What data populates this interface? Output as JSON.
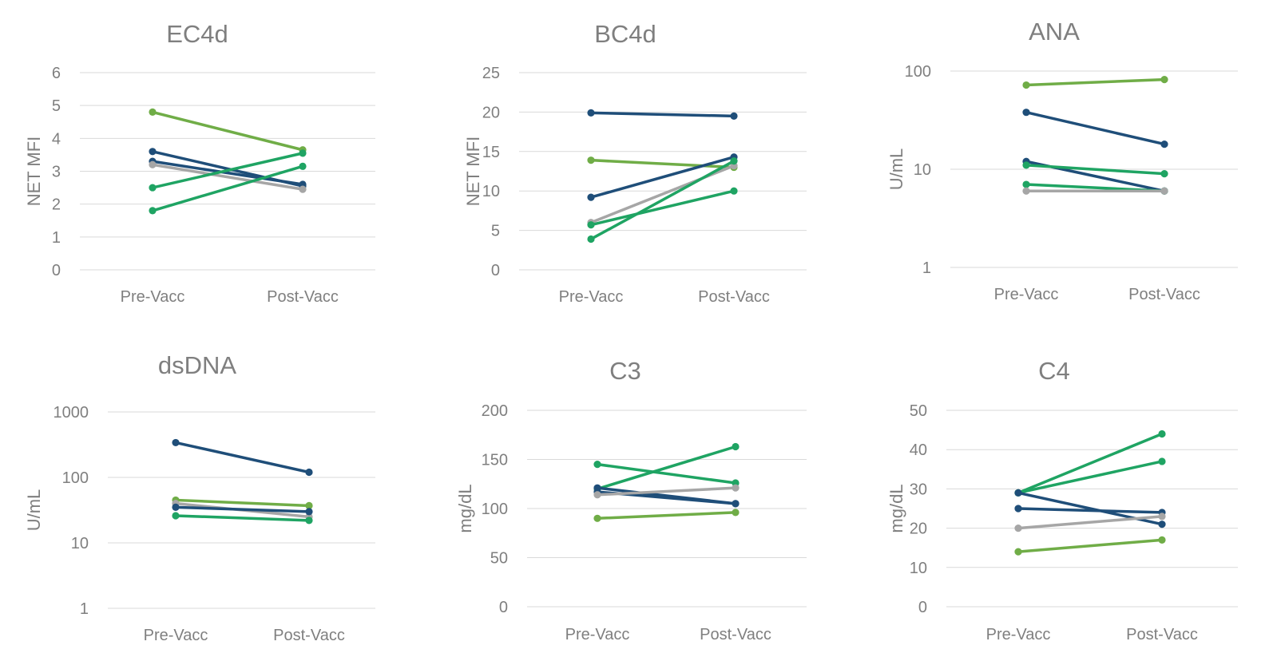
{
  "colors": {
    "navy": "#1f4e79",
    "green": "#1fa463",
    "lightgreen": "#70ad47",
    "gray": "#a6a6a6"
  },
  "chart_data": [
    {
      "type": "line",
      "title": "EC4d",
      "ylabel": "NET MFI",
      "scale": "linear",
      "ylim": [
        0,
        6
      ],
      "yticks": [
        "0",
        "1",
        "2",
        "3",
        "4",
        "5",
        "6"
      ],
      "yticks_values": [
        0,
        1,
        2,
        3,
        4,
        5,
        6
      ],
      "categories": [
        "Pre-Vacc",
        "Post-Vacc"
      ],
      "series": [
        {
          "name": "s1",
          "color": "lightgreen",
          "values": [
            4.8,
            3.65
          ]
        },
        {
          "name": "s2",
          "color": "navy",
          "values": [
            3.6,
            2.55
          ]
        },
        {
          "name": "s3",
          "color": "navy",
          "values": [
            3.3,
            2.6
          ]
        },
        {
          "name": "s4",
          "color": "gray",
          "values": [
            3.2,
            2.45
          ]
        },
        {
          "name": "s5",
          "color": "green",
          "values": [
            2.5,
            3.55
          ]
        },
        {
          "name": "s6",
          "color": "green",
          "values": [
            1.8,
            3.15
          ]
        }
      ]
    },
    {
      "type": "line",
      "title": "BC4d",
      "ylabel": "NET MFI",
      "scale": "linear",
      "ylim": [
        0,
        25
      ],
      "yticks": [
        "0",
        "5",
        "10",
        "15",
        "20",
        "25"
      ],
      "yticks_values": [
        0,
        5,
        10,
        15,
        20,
        25
      ],
      "categories": [
        "Pre-Vacc",
        "Post-Vacc"
      ],
      "series": [
        {
          "name": "s1",
          "color": "navy",
          "values": [
            19.9,
            19.5
          ]
        },
        {
          "name": "s2",
          "color": "lightgreen",
          "values": [
            13.9,
            13.0
          ]
        },
        {
          "name": "s3",
          "color": "navy",
          "values": [
            9.2,
            14.3
          ]
        },
        {
          "name": "s4",
          "color": "gray",
          "values": [
            6.0,
            13.2
          ]
        },
        {
          "name": "s5",
          "color": "green",
          "values": [
            5.7,
            10.0
          ]
        },
        {
          "name": "s6",
          "color": "green",
          "values": [
            3.9,
            13.8
          ]
        }
      ]
    },
    {
      "type": "line",
      "title": "ANA",
      "ylabel": "U/mL",
      "scale": "log",
      "ylim": [
        1,
        100
      ],
      "yticks": [
        "1",
        "10",
        "100"
      ],
      "yticks_values": [
        1,
        10,
        100
      ],
      "categories": [
        "Pre-Vacc",
        "Post-Vacc"
      ],
      "series": [
        {
          "name": "s1",
          "color": "lightgreen",
          "values": [
            72,
            82
          ]
        },
        {
          "name": "s2",
          "color": "navy",
          "values": [
            38,
            18
          ]
        },
        {
          "name": "s3",
          "color": "navy",
          "values": [
            12,
            6
          ]
        },
        {
          "name": "s4",
          "color": "green",
          "values": [
            11,
            9
          ]
        },
        {
          "name": "s5",
          "color": "green",
          "values": [
            7,
            6
          ]
        },
        {
          "name": "s6",
          "color": "gray",
          "values": [
            6,
            6
          ]
        }
      ]
    },
    {
      "type": "line",
      "title": "dsDNA",
      "ylabel": "U/mL",
      "scale": "log",
      "ylim": [
        1,
        1000
      ],
      "yticks": [
        "1",
        "10",
        "100",
        "1000"
      ],
      "yticks_values": [
        1,
        10,
        100,
        1000
      ],
      "categories": [
        "Pre-Vacc",
        "Post-Vacc"
      ],
      "series": [
        {
          "name": "s1",
          "color": "navy",
          "values": [
            340,
            120
          ]
        },
        {
          "name": "s2",
          "color": "lightgreen",
          "values": [
            45,
            37
          ]
        },
        {
          "name": "s3",
          "color": "gray",
          "values": [
            40,
            25
          ]
        },
        {
          "name": "s4",
          "color": "navy",
          "values": [
            35,
            30
          ]
        },
        {
          "name": "s5",
          "color": "green",
          "values": [
            26,
            22
          ]
        }
      ]
    },
    {
      "type": "line",
      "title": "C3",
      "ylabel": "mg/dL",
      "scale": "linear",
      "ylim": [
        0,
        200
      ],
      "yticks": [
        "0",
        "50",
        "100",
        "150",
        "200"
      ],
      "yticks_values": [
        0,
        50,
        100,
        150,
        200
      ],
      "categories": [
        "Pre-Vacc",
        "Post-Vacc"
      ],
      "series": [
        {
          "name": "s1",
          "color": "green",
          "values": [
            145,
            126
          ]
        },
        {
          "name": "s2",
          "color": "green",
          "values": [
            120,
            163
          ]
        },
        {
          "name": "s3",
          "color": "navy",
          "values": [
            121,
            105
          ]
        },
        {
          "name": "s4",
          "color": "navy",
          "values": [
            117,
            105
          ]
        },
        {
          "name": "s5",
          "color": "gray",
          "values": [
            114,
            121
          ]
        },
        {
          "name": "s6",
          "color": "lightgreen",
          "values": [
            90,
            96
          ]
        }
      ]
    },
    {
      "type": "line",
      "title": "C4",
      "ylabel": "mg/dL",
      "scale": "linear",
      "ylim": [
        0,
        50
      ],
      "yticks": [
        "0",
        "10",
        "20",
        "30",
        "40",
        "50"
      ],
      "yticks_values": [
        0,
        10,
        20,
        30,
        40,
        50
      ],
      "categories": [
        "Pre-Vacc",
        "Post-Vacc"
      ],
      "series": [
        {
          "name": "s1",
          "color": "green",
          "values": [
            29,
            44
          ]
        },
        {
          "name": "s2",
          "color": "green",
          "values": [
            29,
            37
          ]
        },
        {
          "name": "s3",
          "color": "navy",
          "values": [
            29,
            21
          ]
        },
        {
          "name": "s4",
          "color": "navy",
          "values": [
            25,
            24
          ]
        },
        {
          "name": "s5",
          "color": "gray",
          "values": [
            20,
            23
          ]
        },
        {
          "name": "s6",
          "color": "lightgreen",
          "values": [
            14,
            17
          ]
        }
      ]
    }
  ]
}
